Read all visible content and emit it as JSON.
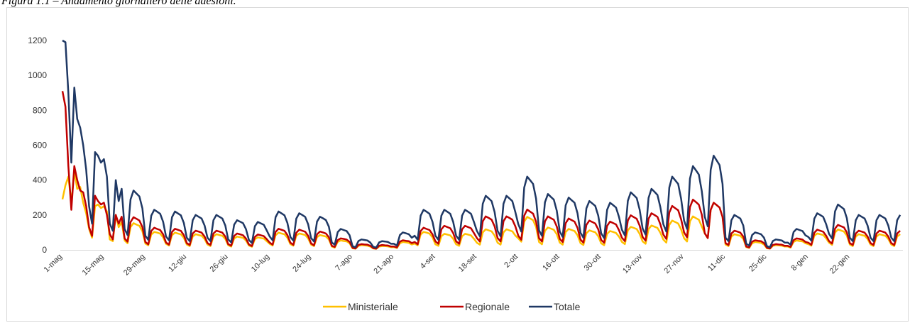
{
  "chart_data": {
    "type": "line",
    "title": "Figura 1.1 – Andamento giornaliero delle adesioni.",
    "categories": [
      "1-mag",
      null,
      null,
      null,
      null,
      null,
      null,
      null,
      null,
      null,
      null,
      null,
      null,
      null,
      "15-mag",
      null,
      null,
      null,
      null,
      null,
      null,
      null,
      null,
      null,
      null,
      null,
      null,
      null,
      "29-mag",
      null,
      null,
      null,
      null,
      null,
      null,
      null,
      null,
      null,
      null,
      null,
      null,
      null,
      "12-giu",
      null,
      null,
      null,
      null,
      null,
      null,
      null,
      null,
      null,
      null,
      null,
      null,
      null,
      "26-giu",
      null,
      null,
      null,
      null,
      null,
      null,
      null,
      null,
      null,
      null,
      null,
      null,
      null,
      "10-lug",
      null,
      null,
      null,
      null,
      null,
      null,
      null,
      null,
      null,
      null,
      null,
      null,
      null,
      "24-lug",
      null,
      null,
      null,
      null,
      null,
      null,
      null,
      null,
      null,
      null,
      null,
      null,
      null,
      "7-ago",
      null,
      null,
      null,
      null,
      null,
      null,
      null,
      null,
      null,
      null,
      null,
      null,
      null,
      "21-ago",
      null,
      null,
      null,
      null,
      null,
      null,
      null,
      null,
      null,
      null,
      null,
      null,
      null,
      "4-set",
      null,
      null,
      null,
      null,
      null,
      null,
      null,
      null,
      null,
      null,
      null,
      null,
      null,
      "18-set",
      null,
      null,
      null,
      null,
      null,
      null,
      null,
      null,
      null,
      null,
      null,
      null,
      null,
      "2-ott",
      null,
      null,
      null,
      null,
      null,
      null,
      null,
      null,
      null,
      null,
      null,
      null,
      null,
      "16-ott",
      null,
      null,
      null,
      null,
      null,
      null,
      null,
      null,
      null,
      null,
      null,
      null,
      null,
      "30-ott",
      null,
      null,
      null,
      null,
      null,
      null,
      null,
      null,
      null,
      null,
      null,
      null,
      null,
      "13-nov",
      null,
      null,
      null,
      null,
      null,
      null,
      null,
      null,
      null,
      null,
      null,
      null,
      null,
      "27-nov",
      null,
      null,
      null,
      null,
      null,
      null,
      null,
      null,
      null,
      null,
      null,
      null,
      null,
      "11-dic",
      null,
      null,
      null,
      null,
      null,
      null,
      null,
      null,
      null,
      null,
      null,
      null,
      null,
      "25-dic",
      null,
      null,
      null,
      null,
      null,
      null,
      null,
      null,
      null,
      null,
      null,
      null,
      null,
      "8-gen",
      null,
      null,
      null,
      null,
      null,
      null,
      null,
      null,
      null,
      null,
      null,
      null,
      null,
      "22-gen",
      null,
      null,
      null,
      null,
      null,
      null,
      null,
      null,
      null,
      null,
      null,
      null,
      null,
      null,
      null,
      null,
      null
    ],
    "series": [
      {
        "name": "Ministeriale",
        "color": "#ffc000",
        "values": [
          290,
          370,
          420,
          270,
          450,
          350,
          360,
          270,
          210,
          120,
          70,
          250,
          260,
          240,
          250,
          220,
          60,
          50,
          200,
          130,
          160,
          54,
          38,
          130,
          153,
          145,
          138,
          107,
          36,
          26,
          88,
          103,
          99,
          93,
          72,
          35,
          25,
          84,
          99,
          94,
          89,
          69,
          31,
          22,
          76,
          90,
          85,
          81,
          63,
          31,
          22,
          76,
          90,
          85,
          81,
          63,
          27,
          19,
          65,
          76,
          73,
          69,
          54,
          25,
          18,
          61,
          72,
          68,
          65,
          50,
          35,
          25,
          84,
          99,
          94,
          89,
          69,
          33,
          24,
          81,
          94,
          90,
          85,
          66,
          30,
          22,
          73,
          85,
          81,
          77,
          60,
          19,
          13,
          46,
          54,
          51,
          49,
          38,
          9,
          7,
          23,
          27,
          26,
          24,
          19,
          8,
          6,
          19,
          22,
          22,
          20,
          16,
          16,
          11,
          38,
          45,
          43,
          40,
          31,
          36,
          26,
          88,
          103,
          99,
          93,
          72,
          32,
          23,
          78,
          92,
          88,
          83,
          64,
          32,
          23,
          78,
          92,
          88,
          83,
          64,
          41,
          30,
          100,
          118,
          112,
          106,
          82,
          41,
          30,
          100,
          118,
          112,
          106,
          82,
          66,
          47,
          161,
          189,
          180,
          170,
          132,
          45,
          32,
          109,
          128,
          122,
          115,
          90,
          42,
          30,
          102,
          120,
          114,
          108,
          84,
          39,
          28,
          95,
          112,
          106,
          101,
          78,
          38,
          27,
          92,
          108,
          103,
          97,
          76,
          46,
          33,
          112,
          132,
          126,
          119,
          92,
          49,
          35,
          119,
          140,
          133,
          126,
          98,
          59,
          42,
          143,
          168,
          160,
          151,
          118,
          67,
          48,
          163,
          192,
          182,
          173,
          134,
          94,
          67,
          229,
          270,
          256,
          243,
          189,
          31,
          22,
          76,
          90,
          85,
          81,
          63,
          16,
          11,
          38,
          45,
          43,
          40,
          31,
          9,
          7,
          23,
          27,
          26,
          24,
          19,
          19,
          13,
          46,
          54,
          51,
          49,
          38,
          33,
          24,
          81,
          94,
          90,
          85,
          66,
          41,
          29,
          99,
          117,
          111,
          105,
          82,
          31,
          22,
          76,
          90,
          85,
          81,
          63,
          31,
          22,
          76,
          90,
          85,
          81,
          63,
          31,
          22,
          76,
          90
        ]
      },
      {
        "name": "Regionale",
        "color": "#c00000",
        "values": [
          910,
          820,
          480,
          230,
          480,
          400,
          340,
          330,
          250,
          130,
          80,
          310,
          280,
          260,
          270,
          200,
          90,
          60,
          200,
          150,
          190,
          65,
          47,
          159,
          187,
          178,
          168,
          131,
          45,
          32,
          108,
          127,
          120,
          114,
          89,
          42,
          30,
          103,
          121,
          115,
          109,
          85,
          39,
          28,
          94,
          110,
          105,
          99,
          77,
          39,
          28,
          94,
          110,
          105,
          99,
          77,
          33,
          24,
          80,
          94,
          89,
          84,
          65,
          31,
          22,
          75,
          88,
          84,
          79,
          62,
          42,
          30,
          103,
          121,
          115,
          109,
          85,
          41,
          29,
          98,
          116,
          110,
          104,
          81,
          37,
          26,
          89,
          105,
          100,
          94,
          73,
          23,
          17,
          56,
          66,
          63,
          59,
          46,
          12,
          8,
          28,
          33,
          31,
          30,
          23,
          10,
          7,
          24,
          28,
          26,
          25,
          19,
          19,
          14,
          47,
          55,
          52,
          50,
          39,
          45,
          32,
          108,
          127,
          120,
          114,
          89,
          49,
          35,
          118,
          138,
          131,
          124,
          97,
          49,
          35,
          118,
          138,
          131,
          124,
          97,
          68,
          48,
          164,
          192,
          183,
          173,
          135,
          68,
          48,
          164,
          192,
          183,
          173,
          135,
          81,
          58,
          196,
          231,
          219,
          208,
          162,
          67,
          48,
          163,
          192,
          182,
          173,
          134,
          63,
          45,
          153,
          180,
          171,
          162,
          126,
          59,
          42,
          143,
          168,
          160,
          151,
          118,
          57,
          41,
          138,
          162,
          154,
          146,
          113,
          70,
          50,
          169,
          198,
          188,
          178,
          139,
          74,
          53,
          179,
          210,
          200,
          189,
          147,
          88,
          63,
          214,
          252,
          239,
          227,
          176,
          101,
          72,
          245,
          288,
          274,
          259,
          202,
          95,
          68,
          230,
          270,
          257,
          243,
          189,
          39,
          28,
          94,
          110,
          105,
          99,
          77,
          19,
          14,
          47,
          55,
          52,
          50,
          39,
          12,
          8,
          28,
          33,
          31,
          30,
          23,
          23,
          17,
          56,
          66,
          63,
          59,
          46,
          41,
          29,
          98,
          116,
          110,
          104,
          81,
          50,
          36,
          122,
          143,
          136,
          129,
          100,
          39,
          28,
          94,
          110,
          105,
          99,
          77,
          39,
          28,
          94,
          110,
          105,
          99,
          77,
          39,
          28,
          94,
          110
        ]
      },
      {
        "name": "Totale",
        "color": "#1f3864",
        "values": [
          1200,
          1190,
          900,
          500,
          930,
          750,
          700,
          600,
          460,
          250,
          150,
          560,
          540,
          500,
          520,
          420,
          150,
          110,
          400,
          280,
          350,
          119,
          85,
          289,
          340,
          323,
          306,
          238,
          81,
          58,
          196,
          230,
          219,
          207,
          161,
          77,
          55,
          187,
          220,
          209,
          198,
          154,
          70,
          50,
          170,
          200,
          190,
          180,
          140,
          70,
          50,
          170,
          200,
          190,
          180,
          140,
          60,
          43,
          145,
          170,
          162,
          153,
          119,
          56,
          40,
          136,
          160,
          152,
          144,
          112,
          77,
          55,
          187,
          220,
          209,
          198,
          154,
          74,
          53,
          179,
          210,
          200,
          189,
          147,
          67,
          48,
          162,
          190,
          181,
          171,
          133,
          42,
          30,
          102,
          120,
          114,
          108,
          84,
          21,
          15,
          51,
          60,
          57,
          54,
          42,
          18,
          13,
          43,
          50,
          48,
          45,
          35,
          35,
          25,
          85,
          100,
          95,
          90,
          70,
          81,
          58,
          196,
          230,
          219,
          207,
          161,
          81,
          58,
          196,
          230,
          219,
          207,
          161,
          81,
          58,
          196,
          230,
          219,
          207,
          161,
          109,
          78,
          264,
          310,
          295,
          279,
          217,
          109,
          78,
          264,
          310,
          295,
          279,
          217,
          147,
          105,
          357,
          420,
          399,
          378,
          294,
          112,
          80,
          272,
          320,
          304,
          288,
          224,
          105,
          75,
          255,
          300,
          285,
          270,
          210,
          98,
          70,
          238,
          280,
          266,
          252,
          196,
          95,
          68,
          230,
          270,
          257,
          243,
          189,
          116,
          83,
          281,
          330,
          314,
          297,
          231,
          123,
          88,
          298,
          350,
          333,
          315,
          245,
          147,
          105,
          357,
          420,
          399,
          378,
          294,
          168,
          120,
          408,
          480,
          456,
          432,
          336,
          189,
          135,
          459,
          540,
          513,
          486,
          378,
          70,
          50,
          170,
          200,
          190,
          180,
          140,
          35,
          25,
          85,
          100,
          95,
          90,
          70,
          21,
          15,
          51,
          60,
          57,
          54,
          42,
          42,
          30,
          102,
          120,
          114,
          108,
          84,
          74,
          53,
          179,
          210,
          200,
          189,
          147,
          91,
          65,
          221,
          260,
          247,
          234,
          182,
          70,
          50,
          170,
          200,
          190,
          180,
          140,
          70,
          50,
          170,
          200,
          190,
          180,
          140,
          70,
          50,
          170,
          200
        ]
      }
    ],
    "ylim": [
      0,
      1200
    ],
    "yticks": [
      0,
      200,
      400,
      600,
      800,
      1000,
      1200
    ],
    "grid": false,
    "legend": "bottom"
  }
}
